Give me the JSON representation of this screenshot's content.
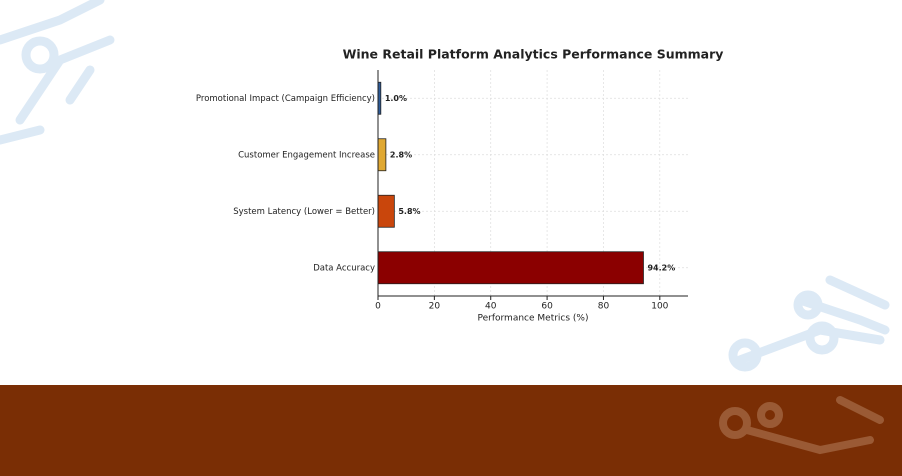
{
  "chart_data": {
    "type": "barh",
    "title": "Wine Retail Platform Analytics Performance Summary",
    "x_label": "Performance Metrics (%)",
    "categories": [
      "Promotional Impact (Campaign Efficiency)",
      "Customer Engagement Increase",
      "System Latency (Lower = Better)",
      "Data Accuracy"
    ],
    "values": [
      1.0,
      2.8,
      5.8,
      94.2
    ],
    "value_labels": [
      "1.0%",
      "2.8%",
      "5.8%",
      "94.2%"
    ],
    "colors": [
      "#2e5c9a",
      "#e0a832",
      "#c9460c",
      "#8b0000"
    ],
    "xlim": [
      0,
      110
    ],
    "xticks": [
      0,
      20,
      40,
      60,
      80,
      100
    ],
    "grid": true
  }
}
